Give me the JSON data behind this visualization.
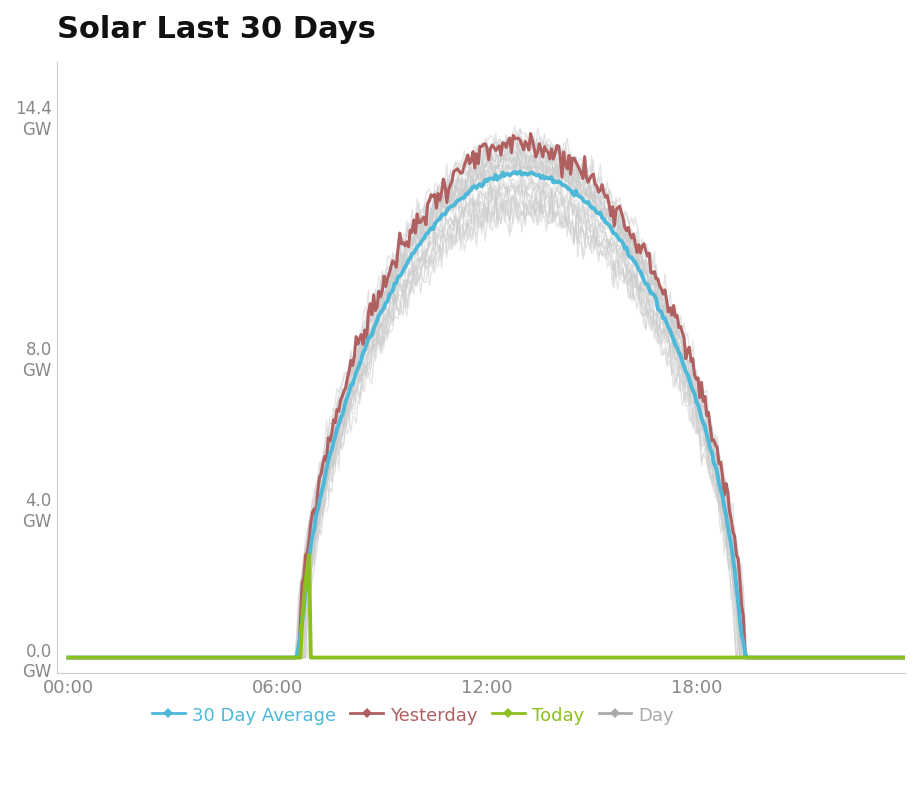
{
  "title": "Solar Last 30 Days",
  "title_fontsize": 22,
  "title_fontweight": "bold",
  "background_color": "#ffffff",
  "plot_bg_color": "#ffffff",
  "x_tick_labels": [
    "00:00",
    "06:00",
    "12:00",
    "18:00"
  ],
  "x_tick_positions": [
    0,
    360,
    720,
    1080
  ],
  "y_ticks": [
    0.0,
    4.0,
    8.0,
    14.4
  ],
  "ylim": [
    -0.4,
    15.8
  ],
  "xlim": [
    -20,
    1439
  ],
  "avg_color": "#4db8d8",
  "yesterday_color": "#b06060",
  "today_color": "#8cc020",
  "day_color": "#cccccc",
  "avg_linewidth": 2.8,
  "yesterday_linewidth": 2.2,
  "today_linewidth": 2.8,
  "day_linewidth": 0.9,
  "day_alpha": 0.55,
  "num_days": 28,
  "peak_gw": 13.0,
  "yesterday_peak_gw": 13.6,
  "today_end_minute": 415,
  "sunrise_minute": 400,
  "sunset_minute": 1155,
  "legend_labels": [
    "30 Day Average",
    "Yesterday",
    "Today",
    "Day"
  ],
  "legend_colors": [
    "#4db8d8",
    "#b06060",
    "#8cc020",
    "#aaaaaa"
  ],
  "marker_size": 5
}
